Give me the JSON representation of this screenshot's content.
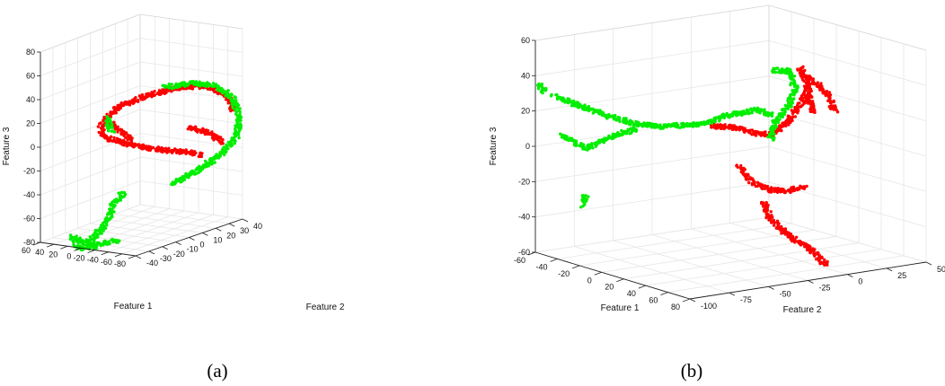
{
  "chart_data": [
    {
      "type": "scatter",
      "caption": "(a)",
      "xlabel": "Feature 1",
      "ylabel": "Feature 2",
      "zlabel": "Feature 3",
      "xticks": [
        "60",
        "40",
        "20",
        "0",
        "-20",
        "-40",
        "-60",
        "-80"
      ],
      "yticks": [
        "-40",
        "-30",
        "-20",
        "-10",
        "0",
        "10",
        "20",
        "30",
        "40"
      ],
      "zticks": [
        "-80",
        "-60",
        "-40",
        "-20",
        "0",
        "20",
        "40",
        "60",
        "80"
      ],
      "colors": [
        "#ff0000",
        "#00ee00"
      ],
      "grid": true,
      "series": [
        {
          "color_index": 0,
          "segments": [
            [
              [
                -33,
                14
              ],
              [
                -50,
                26
              ],
              [
                -60,
                38
              ],
              [
                -44,
                52
              ],
              [
                -13,
                63
              ],
              [
                23,
                72
              ],
              [
                52,
                73
              ],
              [
                73,
                63
              ],
              [
                81,
                45
              ]
            ],
            [
              [
                -60,
                38
              ],
              [
                -68,
                25
              ],
              [
                -61,
                16
              ],
              [
                -40,
                9
              ],
              [
                -14,
                4
              ],
              [
                12,
                1
              ],
              [
                37,
                -1
              ],
              [
                47,
                -5
              ]
            ],
            [
              [
                30,
                27
              ],
              [
                54,
                21
              ],
              [
                69,
                10
              ]
            ]
          ]
        },
        {
          "color_index": 1,
          "segments": [
            [
              [
                -60,
                38
              ],
              [
                -54,
                22
              ]
            ],
            [
              [
                5,
                72
              ],
              [
                33,
                76
              ],
              [
                60,
                74
              ],
              [
                80,
                60
              ],
              [
                87,
                40
              ],
              [
                85,
                18
              ],
              [
                66,
                -4
              ],
              [
                40,
                -21
              ],
              [
                14,
                -36
              ]
            ],
            [
              [
                -41,
                -45
              ],
              [
                -54,
                -61
              ],
              [
                -60,
                -79
              ],
              [
                -72,
                -93
              ],
              [
                -80,
                -103
              ]
            ],
            [
              [
                -73,
                -105
              ],
              [
                -92,
                -108
              ],
              [
                -98,
                -95
              ],
              [
                -78,
                -104
              ],
              [
                -49,
                -99
              ]
            ]
          ]
        }
      ]
    },
    {
      "type": "scatter",
      "caption": "(b)",
      "xlabel": "Feature 1",
      "ylabel": "Feature 2",
      "zlabel": "Feature 3",
      "xticks": [
        "-60",
        "-40",
        "-20",
        "0",
        "20",
        "40",
        "60",
        "80"
      ],
      "yticks": [
        "-100",
        "-75",
        "-50",
        "-25",
        "0",
        "25",
        "50"
      ],
      "zticks": [
        "-60",
        "-40",
        "-20",
        "0",
        "20",
        "40",
        "60"
      ],
      "colors": [
        "#ff0000",
        "#00ee00"
      ],
      "grid": true,
      "series": [
        {
          "color_index": 0,
          "segments": [
            [
              [
                -40,
                -22
              ],
              [
                -25,
                -40
              ],
              [
                -7,
                -48
              ],
              [
                14,
                -50
              ],
              [
                34,
                -45
              ]
            ],
            [
              [
                -12,
                -62
              ],
              [
                -6,
                -78
              ],
              [
                8,
                -92
              ],
              [
                24,
                -105
              ],
              [
                36,
                -112
              ],
              [
                48,
                -122
              ],
              [
                58,
                -133
              ]
            ],
            [
              [
                -70,
                23
              ],
              [
                -38,
                20
              ],
              [
                -20,
                14
              ],
              [
                -3,
                14
              ],
              [
                16,
                28
              ],
              [
                33,
                53
              ],
              [
                42,
                78
              ]
            ],
            [
              [
                29,
                88
              ],
              [
                37,
                66
              ],
              [
                42,
                36
              ]
            ],
            [
              [
                44,
                72
              ],
              [
                58,
                60
              ],
              [
                68,
                39
              ]
            ]
          ]
        },
        {
          "color_index": 1,
          "segments": [
            [
              [
                -246,
                56
              ],
              [
                -216,
                45
              ],
              [
                -183,
                33
              ],
              [
                -154,
                25
              ],
              [
                -128,
                22
              ],
              [
                -86,
                24
              ],
              [
                -50,
                35
              ],
              [
                -18,
                41
              ],
              [
                -2,
                34
              ]
            ],
            [
              [
                -236,
                12
              ],
              [
                -210,
                -2
              ],
              [
                -188,
                8
              ],
              [
                -154,
                20
              ]
            ],
            [
              [
                -2,
                85
              ],
              [
                16,
                84
              ],
              [
                23,
                65
              ],
              [
                16,
                46
              ],
              [
                0,
                26
              ],
              [
                -4,
                8
              ]
            ],
            [
              [
                -210,
                -55
              ],
              [
                -212,
                -66
              ]
            ],
            [
              [
                -262,
                69
              ],
              [
                -255,
                60
              ]
            ]
          ]
        }
      ]
    }
  ]
}
